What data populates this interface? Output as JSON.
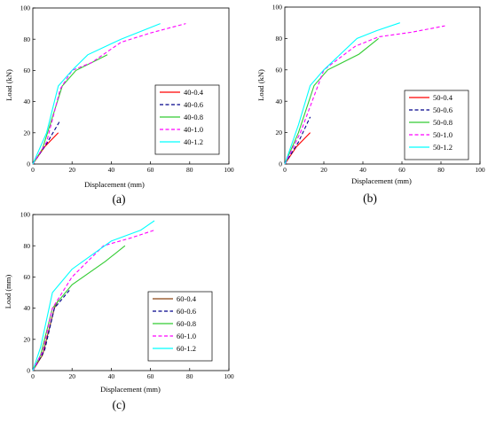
{
  "chart_data": [
    {
      "type": "line",
      "panel_label": "(a)",
      "xlabel": "Displacement (mm)",
      "ylabel": "Load (kN)",
      "xlim": [
        0,
        100
      ],
      "ylim": [
        0,
        100
      ],
      "xticks": [
        0,
        20,
        40,
        60,
        80,
        100
      ],
      "yticks": [
        0,
        20,
        40,
        60,
        80,
        100
      ],
      "legend": "right-middle",
      "series": [
        {
          "name": "40-0.4",
          "color": "#ff0000",
          "dash": "solid",
          "x": [
            0,
            6,
            13
          ],
          "y": [
            0,
            11,
            20
          ]
        },
        {
          "name": "40-0.6",
          "color": "#00008b",
          "dash": "dashed",
          "x": [
            0,
            7,
            14
          ],
          "y": [
            0,
            13,
            28
          ]
        },
        {
          "name": "40-0.8",
          "color": "#33cc33",
          "dash": "solid",
          "x": [
            0,
            5,
            15,
            22,
            30,
            38
          ],
          "y": [
            0,
            10,
            50,
            60,
            65,
            70
          ]
        },
        {
          "name": "40-1.0",
          "color": "#ff00ff",
          "dash": "dashed",
          "x": [
            0,
            7,
            14,
            20,
            30,
            45,
            60,
            78
          ],
          "y": [
            0,
            14,
            48,
            60,
            65,
            78,
            84,
            90
          ]
        },
        {
          "name": "40-1.2",
          "color": "#00ffff",
          "dash": "solid",
          "x": [
            0,
            7,
            13,
            20,
            28,
            45,
            65
          ],
          "y": [
            0,
            20,
            50,
            60,
            70,
            80,
            90
          ]
        }
      ]
    },
    {
      "type": "line",
      "panel_label": "(b)",
      "xlabel": "Displacement (mm)",
      "ylabel": "Load (kN)",
      "xlim": [
        0,
        100
      ],
      "ylim": [
        0,
        100
      ],
      "xticks": [
        0,
        20,
        40,
        60,
        80,
        100
      ],
      "yticks": [
        0,
        20,
        40,
        60,
        80,
        100
      ],
      "legend": "right-bottom",
      "series": [
        {
          "name": "50-0.4",
          "color": "#ff0000",
          "dash": "solid",
          "x": [
            0,
            6,
            13
          ],
          "y": [
            0,
            11,
            20
          ]
        },
        {
          "name": "50-0.6",
          "color": "#00008b",
          "dash": "dashed",
          "x": [
            0,
            7,
            13
          ],
          "y": [
            0,
            14,
            30
          ]
        },
        {
          "name": "50-0.8",
          "color": "#33cc33",
          "dash": "solid",
          "x": [
            0,
            7,
            15,
            22,
            38,
            48
          ],
          "y": [
            0,
            20,
            50,
            60,
            70,
            80
          ]
        },
        {
          "name": "50-1.0",
          "color": "#ff00ff",
          "dash": "dashed",
          "x": [
            0,
            8,
            20,
            36,
            48,
            65,
            82
          ],
          "y": [
            0,
            20,
            60,
            75,
            81,
            84,
            88
          ]
        },
        {
          "name": "50-1.2",
          "color": "#00ffff",
          "dash": "solid",
          "x": [
            0,
            7,
            13,
            20,
            37,
            47,
            59
          ],
          "y": [
            0,
            25,
            50,
            60,
            80,
            85,
            90
          ]
        }
      ]
    },
    {
      "type": "line",
      "panel_label": "(c)",
      "xlabel": "Displacement (mm)",
      "ylabel": "Load (mm)",
      "xlim": [
        0,
        100
      ],
      "ylim": [
        0,
        100
      ],
      "xticks": [
        0,
        20,
        40,
        60,
        80,
        100
      ],
      "yticks": [
        0,
        20,
        40,
        60,
        80,
        100
      ],
      "legend": "right-bottom",
      "series": [
        {
          "name": "60-0.4",
          "color": "#8b4513",
          "dash": "solid",
          "x": [
            0,
            5,
            11,
            13
          ],
          "y": [
            0,
            10,
            40,
            45
          ]
        },
        {
          "name": "60-0.6",
          "color": "#00008b",
          "dash": "dashed",
          "x": [
            0,
            6,
            11,
            19
          ],
          "y": [
            0,
            13,
            40,
            52
          ]
        },
        {
          "name": "60-0.8",
          "color": "#33cc33",
          "dash": "solid",
          "x": [
            0,
            4,
            10,
            20,
            37,
            47
          ],
          "y": [
            0,
            10,
            40,
            55,
            70,
            80
          ]
        },
        {
          "name": "60-1.0",
          "color": "#ff00ff",
          "dash": "dashed",
          "x": [
            0,
            5,
            10,
            20,
            36,
            50,
            62
          ],
          "y": [
            0,
            12,
            40,
            60,
            80,
            85,
            90
          ]
        },
        {
          "name": "60-1.2",
          "color": "#00ffff",
          "dash": "solid",
          "x": [
            0,
            4,
            10,
            20,
            40,
            55,
            62
          ],
          "y": [
            0,
            15,
            50,
            65,
            83,
            90,
            96
          ]
        }
      ]
    }
  ]
}
